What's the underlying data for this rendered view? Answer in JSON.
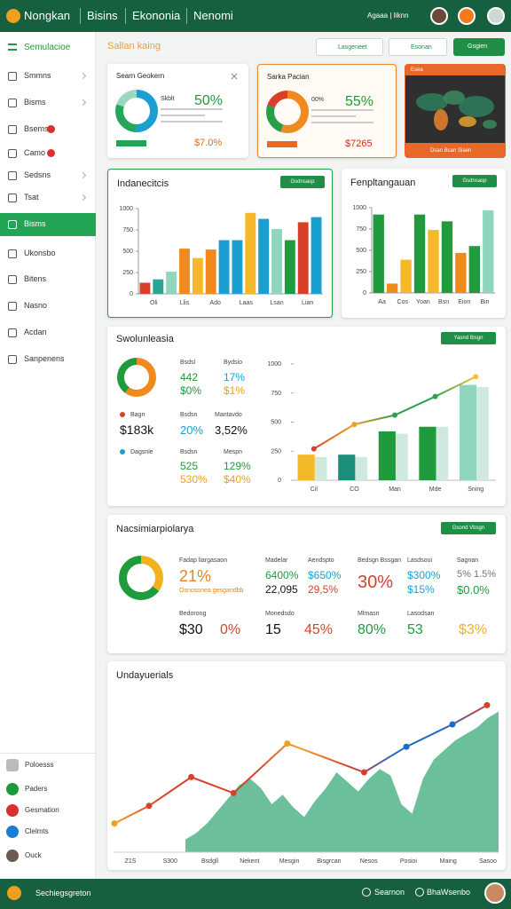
{
  "header": {
    "brand": "Nongkan",
    "nav": [
      "Bisins",
      "Ekononia",
      "Nenomi"
    ],
    "user": "Agaaa | Iiknn"
  },
  "sidebar": {
    "title": "Semulacioe",
    "items": [
      "Smmns",
      "Bisms",
      "Bsems",
      "Camo",
      "Sedsns",
      "Tsat",
      "Bisms",
      "Ukonsbo",
      "Bitens",
      "Nasno",
      "Acdan",
      "Sanpenens"
    ],
    "active": 6,
    "bottom": [
      "Poloesss",
      "Paders",
      "Gesmation",
      "Clelmts",
      "Ouck"
    ]
  },
  "page": {
    "title": "Sallan kaing",
    "buttons": [
      "Lasgeneet",
      "Esonan",
      "Gsgien"
    ]
  },
  "cards": [
    {
      "title": "Searn Geokern",
      "label": "Skblt",
      "value": "50%",
      "sub": "$7.0%",
      "donut": {
        "values": [
          50,
          30,
          20
        ],
        "colors": [
          "#1a9fd0",
          "#27a65a",
          "#9ad8c0"
        ]
      }
    },
    {
      "title": "Sarka Pacian",
      "label": "00%",
      "value": "55%",
      "sub": "$7265",
      "donut": {
        "values": [
          55,
          25,
          20
        ],
        "colors": [
          "#f08a1c",
          "#2a9d4a",
          "#d9402b"
        ]
      }
    },
    {
      "title": "Esea",
      "footer": "Dsan Bcan Siaen"
    }
  ],
  "bar_charts": [
    {
      "title": "Indanecitcis",
      "button": "Gsdnsasp",
      "ylim": [
        0,
        1000
      ],
      "yticks": [
        0,
        250,
        500,
        750,
        1000
      ],
      "values": [
        130,
        170,
        260,
        530,
        420,
        520,
        630,
        630,
        950,
        880,
        760,
        630,
        840,
        900
      ],
      "colors": [
        "#d9402b",
        "#2aa592",
        "#8fd6bd",
        "#f08a1c",
        "#f5b82a",
        "#f08a1c",
        "#1a9fd0",
        "#1a9fd0",
        "#f5b82a",
        "#1a9fd0",
        "#8fd6bd",
        "#1f9a3c",
        "#d9402b",
        "#1a9fd0"
      ],
      "xlabels": [
        "Oli",
        "Llis",
        "Ado",
        "Laas",
        "Lsan",
        "Lian"
      ]
    },
    {
      "title": "Fenpltangauan",
      "button": "Gsdnsasp",
      "ylim": [
        0,
        1000
      ],
      "yticks": [
        0,
        250,
        500,
        750,
        1000
      ],
      "values": [
        920,
        110,
        390,
        920,
        740,
        840,
        470,
        550,
        970
      ],
      "colors": [
        "#1f9a3c",
        "#f08a1c",
        "#f5b82a",
        "#1f9a3c",
        "#f5b82a",
        "#1f9a3c",
        "#f08a1c",
        "#1f9a3c",
        "#8fd6bd"
      ],
      "xlabels": [
        "Aa",
        "Cos",
        "Yoan",
        "Bsn",
        "Eion",
        "Bin"
      ]
    }
  ],
  "overview": {
    "title": "Swolunleasia",
    "button": "Yasnd Ibsgn",
    "donut": {
      "values": [
        60,
        40
      ],
      "colors": [
        "#f08a1c",
        "#1f9a3c"
      ]
    },
    "legend": [
      {
        "name": "Bagn",
        "color": "#d9402b"
      },
      {
        "name": "Dagsnle",
        "color": "#1a9fd0"
      }
    ],
    "stats": [
      {
        "label": "Bsdsl",
        "values": [
          "442",
          "$0%"
        ],
        "colors": [
          "#1f9a3c",
          "#1f9a3c"
        ]
      },
      {
        "label": "Bydsio",
        "values": [
          "17%",
          "$1%"
        ],
        "colors": [
          "#1a9fd0",
          "#f0a020"
        ]
      },
      {
        "values": [
          "$183k"
        ],
        "colors": [
          "#111111"
        ]
      },
      {
        "label": "Bsdsn",
        "values": [
          "20%"
        ],
        "colors": [
          "#1a9fd0"
        ]
      },
      {
        "label": "Mantavdo",
        "values": [
          "3,52%"
        ],
        "colors": [
          "#111111"
        ]
      },
      {
        "label": "Bsdsn",
        "values": [
          "525",
          "530%"
        ],
        "colors": [
          "#1f9a3c",
          "#f0a020"
        ]
      },
      {
        "label": "Mespn",
        "values": [
          "129%",
          "$40%"
        ],
        "colors": [
          "#1f9a3c",
          "#f0a020"
        ]
      }
    ],
    "chart": {
      "categories": [
        "Cil",
        "CO",
        "Man",
        "Mde",
        "Sning"
      ],
      "ylim": [
        0,
        1000
      ],
      "yticks": [
        0,
        250,
        500,
        750,
        1000
      ],
      "bars": [
        220,
        220,
        420,
        460,
        820
      ],
      "bar_colors": [
        "#f5b82a",
        "#1a8f7a",
        "#1f9a3c",
        "#1f9a3c",
        "#8fd6bd"
      ],
      "light": [
        200,
        200,
        400,
        460,
        800
      ],
      "light_color": "#cfe9de",
      "line": [
        270,
        480,
        560,
        720,
        890
      ],
      "line_colors": [
        "#d9402b",
        "#f0a020",
        "#2aa050",
        "#2aa050",
        "#f5c030"
      ]
    }
  },
  "summary": {
    "title": "Nacsimiarpiolarya",
    "button": "Gsond Vbsgn",
    "donut": {
      "values": [
        35,
        65
      ],
      "colors": [
        "#f2b21c",
        "#1f9a3c"
      ]
    },
    "stats": [
      {
        "label": "Fadap liargasaon",
        "values": [
          "21%",
          "Osnosonea gesgandbb"
        ],
        "colors": [
          "#e8821e",
          "#e8821e"
        ]
      },
      {
        "label": "Madelar",
        "values": [
          "6400%",
          "22,095"
        ],
        "colors": [
          "#1f9a3c",
          "#111111"
        ]
      },
      {
        "label": "Aendspto",
        "values": [
          "$650%",
          "29,5%"
        ],
        "colors": [
          "#1a9fd0",
          "#d9402b"
        ]
      },
      {
        "label": "Bedsgn Bssgan",
        "values": [
          "30%"
        ],
        "colors": [
          "#d9402b"
        ]
      },
      {
        "label": "Lasdsoui",
        "values": [
          "$300%",
          "$15%"
        ],
        "colors": [
          "#1a9fd0",
          "#1a9fd0"
        ]
      },
      {
        "label": "Sagnan",
        "values": [
          "5% 1.5%",
          "$0.0%"
        ],
        "colors": [
          "#777777",
          "#1f9a3c"
        ]
      },
      {
        "label": "Bedorong",
        "values": [
          "$30",
          "0%"
        ],
        "colors": [
          "#111111",
          "#d9402b"
        ]
      },
      {
        "label": "Monedsdo",
        "values": [
          "15",
          "45%"
        ],
        "colors": [
          "#111111",
          "#d9402b"
        ]
      },
      {
        "label": "Mlmasn",
        "values": [
          "80%"
        ],
        "colors": [
          "#1f9a3c"
        ]
      },
      {
        "label": "Lasodsan",
        "values": [
          "53",
          "$3%"
        ],
        "colors": [
          "#1f9a3c",
          "#f2b21c"
        ]
      }
    ]
  },
  "trend": {
    "title": "Undayuerials",
    "ylim": [
      0,
      100
    ],
    "xlim": [
      0,
      100
    ],
    "area": [
      8,
      12,
      18,
      26,
      34,
      42,
      46,
      40,
      30,
      36,
      28,
      22,
      32,
      40,
      50,
      44,
      38,
      46,
      52,
      48,
      30,
      24,
      46,
      58,
      64,
      70,
      74,
      78,
      84,
      88
    ],
    "area_color": "#3aaa78",
    "x": [
      0,
      9,
      20,
      31,
      45,
      65,
      76,
      88,
      97
    ],
    "line": [
      18,
      29,
      47,
      37,
      68,
      50,
      66,
      80,
      92
    ],
    "point_colors": [
      "#f0a020",
      "#d9402b",
      "#d9402b",
      "#d9402b",
      "#f0a020",
      "#d9402b",
      "#1a6ac8",
      "#1a6ac8",
      "#d9402b"
    ],
    "xlabels": [
      "Z1S",
      "S300",
      "Bsdgll",
      "Nekent",
      "Mesgin",
      "Bisgrcan",
      "Nesos",
      "Posioi",
      "Maing",
      "Sasoo"
    ]
  },
  "footer": {
    "brand": "Sechiegsgreton",
    "links": [
      "Searnon",
      "BhaWsenbo"
    ]
  }
}
